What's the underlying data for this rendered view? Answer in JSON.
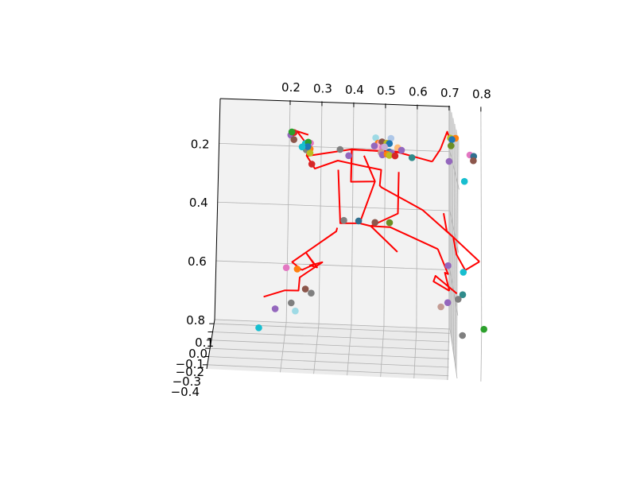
{
  "chart_data": {
    "type": "scatter",
    "projection": "3d",
    "title": "",
    "x_axis": {
      "ticks": [
        "0.2",
        "0.3",
        "0.4",
        "0.5",
        "0.6",
        "0.7",
        "0.8"
      ]
    },
    "y_axis": {
      "ticks": [
        "0.2",
        "0.4",
        "0.6",
        "0.8"
      ],
      "inverted": true
    },
    "z_axis": {
      "ticks": [
        "0.1",
        "0.0",
        "−0.1",
        "−0.2",
        "−0.3",
        "−0.4"
      ]
    },
    "grid": true,
    "line_color": "#ff0000",
    "skeleton_lines": [
      [
        [
          0.262,
          0.202
        ],
        [
          0.255,
          0.232
        ],
        [
          0.396,
          0.204
        ],
        [
          0.394,
          0.314
        ],
        [
          0.469,
          0.31
        ],
        [
          0.434,
          0.224
        ]
      ],
      [
        [
          0.396,
          0.204
        ],
        [
          0.542,
          0.209
        ],
        [
          0.647,
          0.236
        ]
      ],
      [
        [
          0.647,
          0.236
        ],
        [
          0.673,
          0.193
        ]
      ],
      [
        [
          0.709,
          0.182
        ],
        [
          0.694,
          0.133
        ],
        [
          0.673,
          0.193
        ]
      ],
      [
        [
          0.542,
          0.209
        ],
        [
          0.542,
          0.206
        ],
        [
          0.395,
          0.205
        ],
        [
          0.394,
          0.314
        ]
      ],
      [
        [
          0.254,
          0.233
        ],
        [
          0.262,
          0.202
        ],
        [
          0.223,
          0.149
        ],
        [
          0.259,
          0.16
        ]
      ],
      [
        [
          0.254,
          0.233
        ],
        [
          0.255,
          0.232
        ],
        [
          0.281,
          0.274
        ],
        [
          0.352,
          0.244
        ],
        [
          0.418,
          0.257
        ],
        [
          0.488,
          0.27
        ],
        [
          0.484,
          0.323
        ],
        [
          0.489,
          0.329
        ],
        [
          0.618,
          0.401
        ],
        [
          0.713,
          0.489
        ],
        [
          0.723,
          0.547
        ],
        [
          0.75,
          0.599
        ],
        [
          0.794,
          0.568
        ]
      ],
      [
        [
          0.794,
          0.568
        ],
        [
          0.693,
          0.469
        ],
        [
          0.683,
          0.409
        ]
      ],
      [
        [
          0.469,
          0.31
        ],
        [
          0.422,
          0.454
        ],
        [
          0.362,
          0.456
        ],
        [
          0.354,
          0.275
        ]
      ],
      [
        [
          0.422,
          0.454
        ],
        [
          0.457,
          0.462
        ],
        [
          0.541,
          0.416
        ],
        [
          0.543,
          0.275
        ]
      ],
      [
        [
          0.457,
          0.462
        ],
        [
          0.54,
          0.546
        ]
      ],
      [
        [
          0.457,
          0.462
        ],
        [
          0.517,
          0.463
        ],
        [
          0.665,
          0.531
        ]
      ],
      [
        [
          0.665,
          0.531
        ],
        [
          0.697,
          0.614
        ],
        [
          0.687,
          0.61
        ],
        [
          0.701,
          0.671
        ]
      ],
      [
        [
          0.701,
          0.671
        ],
        [
          0.652,
          0.641
        ],
        [
          0.658,
          0.622
        ],
        [
          0.724,
          0.679
        ]
      ],
      [
        [
          0.353,
          0.472
        ],
        [
          0.35,
          0.484
        ],
        [
          0.215,
          0.594
        ],
        [
          0.245,
          0.62
        ]
      ],
      [
        [
          0.245,
          0.62
        ],
        [
          0.283,
          0.599
        ]
      ],
      [
        [
          0.283,
          0.599
        ],
        [
          0.257,
          0.56
        ],
        [
          0.292,
          0.609
        ],
        [
          0.27,
          0.603
        ],
        [
          0.308,
          0.591
        ],
        [
          0.239,
          0.645
        ],
        [
          0.236,
          0.69
        ],
        [
          0.194,
          0.691
        ],
        [
          0.129,
          0.716
        ]
      ]
    ],
    "points": [
      {
        "x": 0.204,
        "y": 0.163,
        "color": "#9467bd"
      },
      {
        "x": 0.214,
        "y": 0.154,
        "color": "#d62728"
      },
      {
        "x": 0.207,
        "y": 0.152,
        "color": "#2ca02c"
      },
      {
        "x": 0.214,
        "y": 0.178,
        "color": "#8c564b"
      },
      {
        "x": 0.25,
        "y": 0.19,
        "color": "#17becf"
      },
      {
        "x": 0.266,
        "y": 0.188,
        "color": "#e377c2"
      },
      {
        "x": 0.259,
        "y": 0.185,
        "color": "#2ca02c"
      },
      {
        "x": 0.265,
        "y": 0.208,
        "color": "#ff7f0e"
      },
      {
        "x": 0.253,
        "y": 0.211,
        "color": "#7f7f7f"
      },
      {
        "x": 0.258,
        "y": 0.2,
        "color": "#1f77b4"
      },
      {
        "x": 0.265,
        "y": 0.222,
        "color": "#bcbd22"
      },
      {
        "x": 0.271,
        "y": 0.259,
        "color": "#d62728"
      },
      {
        "x": 0.24,
        "y": 0.202,
        "color": "#17becf"
      },
      {
        "x": 0.359,
        "y": 0.206,
        "color": "#7f7f7f"
      },
      {
        "x": 0.386,
        "y": 0.226,
        "color": "#9467bd"
      },
      {
        "x": 0.47,
        "y": 0.162,
        "color": "#9edae5"
      },
      {
        "x": 0.518,
        "y": 0.162,
        "color": "#aec7e8"
      },
      {
        "x": 0.478,
        "y": 0.18,
        "color": "#ff7f0e"
      },
      {
        "x": 0.484,
        "y": 0.179,
        "color": "#ff9896"
      },
      {
        "x": 0.49,
        "y": 0.175,
        "color": "#8c564b"
      },
      {
        "x": 0.505,
        "y": 0.179,
        "color": "#bcbd22"
      },
      {
        "x": 0.513,
        "y": 0.18,
        "color": "#1f77b4"
      },
      {
        "x": 0.476,
        "y": 0.192,
        "color": "#f7b6d2"
      },
      {
        "x": 0.466,
        "y": 0.19,
        "color": "#9467bd"
      },
      {
        "x": 0.492,
        "y": 0.194,
        "color": "#e377c2"
      },
      {
        "x": 0.498,
        "y": 0.192,
        "color": "#c5b0d5"
      },
      {
        "x": 0.539,
        "y": 0.193,
        "color": "#ffbb78"
      },
      {
        "x": 0.487,
        "y": 0.211,
        "color": "#c49c94"
      },
      {
        "x": 0.491,
        "y": 0.219,
        "color": "#9467bd"
      },
      {
        "x": 0.513,
        "y": 0.208,
        "color": "#1f77b4"
      },
      {
        "x": 0.52,
        "y": 0.212,
        "color": "#9467bd"
      },
      {
        "x": 0.506,
        "y": 0.216,
        "color": "#ff7f0e"
      },
      {
        "x": 0.513,
        "y": 0.22,
        "color": "#bcbd22"
      },
      {
        "x": 0.531,
        "y": 0.221,
        "color": "#d62728"
      },
      {
        "x": 0.551,
        "y": 0.201,
        "color": "#9467bd"
      },
      {
        "x": 0.584,
        "y": 0.225,
        "color": "#2f8b8b"
      },
      {
        "x": 0.704,
        "y": 0.154,
        "color": "#bcbd22"
      },
      {
        "x": 0.72,
        "y": 0.154,
        "color": "#ff7f0e"
      },
      {
        "x": 0.709,
        "y": 0.159,
        "color": "#1f77b4"
      },
      {
        "x": 0.706,
        "y": 0.18,
        "color": "#6b8e23"
      },
      {
        "x": 0.7,
        "y": 0.233,
        "color": "#9467bd"
      },
      {
        "x": 0.765,
        "y": 0.209,
        "color": "#e377c2"
      },
      {
        "x": 0.777,
        "y": 0.213,
        "color": "#2f6f8f"
      },
      {
        "x": 0.776,
        "y": 0.228,
        "color": "#8c564b"
      },
      {
        "x": 0.748,
        "y": 0.299,
        "color": "#17becf"
      },
      {
        "x": 0.373,
        "y": 0.446,
        "color": "#7f7f7f"
      },
      {
        "x": 0.419,
        "y": 0.446,
        "color": "#2f6f8f"
      },
      {
        "x": 0.47,
        "y": 0.449,
        "color": "#8c564b"
      },
      {
        "x": 0.515,
        "y": 0.448,
        "color": "#6b8e23"
      },
      {
        "x": 0.197,
        "y": 0.614,
        "color": "#e377c2"
      },
      {
        "x": 0.231,
        "y": 0.617,
        "color": "#ff7f0e"
      },
      {
        "x": 0.257,
        "y": 0.684,
        "color": "#8c564b"
      },
      {
        "x": 0.275,
        "y": 0.697,
        "color": "#7f7f7f"
      },
      {
        "x": 0.214,
        "y": 0.733,
        "color": "#7f7f7f"
      },
      {
        "x": 0.165,
        "y": 0.755,
        "color": "#9467bd"
      },
      {
        "x": 0.227,
        "y": 0.76,
        "color": "#9edae5"
      },
      {
        "x": 0.116,
        "y": 0.822,
        "color": "#17becf"
      },
      {
        "x": 0.697,
        "y": 0.586,
        "color": "#9467bd"
      },
      {
        "x": 0.744,
        "y": 0.606,
        "color": "#17becf"
      },
      {
        "x": 0.742,
        "y": 0.682,
        "color": "#2f8b8b"
      },
      {
        "x": 0.728,
        "y": 0.698,
        "color": "#7f7f7f"
      },
      {
        "x": 0.696,
        "y": 0.711,
        "color": "#9467bd"
      },
      {
        "x": 0.675,
        "y": 0.726,
        "color": "#c49c94"
      },
      {
        "x": 0.741,
        "y": 0.82,
        "color": "#7f7f7f"
      },
      {
        "x": 0.807,
        "y": 0.796,
        "color": "#2ca02c"
      }
    ]
  }
}
